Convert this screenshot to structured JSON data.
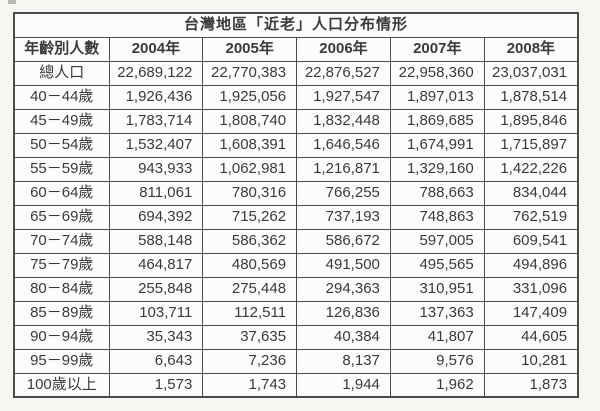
{
  "chart_data": {
    "type": "table",
    "title": "台灣地區「近老」人口分布情形",
    "columns": [
      "年齡別人數",
      "2004年",
      "2005年",
      "2006年",
      "2007年",
      "2008年"
    ],
    "rows": [
      {
        "label": "總人口",
        "values": [
          "22,689,122",
          "22,770,383",
          "22,876,527",
          "22,958,360",
          "23,037,031"
        ]
      },
      {
        "label": "40－44歲",
        "values": [
          "1,926,436",
          "1,925,056",
          "1,927,547",
          "1,897,013",
          "1,878,514"
        ]
      },
      {
        "label": "45－49歲",
        "values": [
          "1,783,714",
          "1,808,740",
          "1,832,448",
          "1,869,685",
          "1,895,846"
        ]
      },
      {
        "label": "50－54歲",
        "values": [
          "1,532,407",
          "1,608,391",
          "1,646,546",
          "1,674,991",
          "1,715,897"
        ]
      },
      {
        "label": "55－59歲",
        "values": [
          "943,933",
          "1,062,981",
          "1,216,871",
          "1,329,160",
          "1,422,226"
        ]
      },
      {
        "label": "60－64歲",
        "values": [
          "811,061",
          "780,316",
          "766,255",
          "788,663",
          "834,044"
        ]
      },
      {
        "label": "65－69歲",
        "values": [
          "694,392",
          "715,262",
          "737,193",
          "748,863",
          "762,519"
        ]
      },
      {
        "label": "70－74歲",
        "values": [
          "588,148",
          "586,362",
          "586,672",
          "597,005",
          "609,541"
        ]
      },
      {
        "label": "75－79歲",
        "values": [
          "464,817",
          "480,569",
          "491,500",
          "495,565",
          "494,896"
        ]
      },
      {
        "label": "80－84歲",
        "values": [
          "255,848",
          "275,448",
          "294,363",
          "310,951",
          "331,096"
        ]
      },
      {
        "label": "85－89歲",
        "values": [
          "103,711",
          "112,511",
          "126,836",
          "137,363",
          "147,409"
        ]
      },
      {
        "label": "90－94歲",
        "values": [
          "35,343",
          "37,635",
          "40,384",
          "41,807",
          "44,605"
        ]
      },
      {
        "label": "95－99歲",
        "values": [
          "6,643",
          "7,236",
          "8,137",
          "9,576",
          "10,281"
        ]
      },
      {
        "label": "100歲以上",
        "values": [
          "1,573",
          "1,743",
          "1,944",
          "1,962",
          "1,873"
        ]
      }
    ],
    "layout_hints": {
      "border_color": "#4a4a4a",
      "background": "#f6f6f3",
      "cell_background": "#fcfcfa",
      "number_alignment": "right",
      "label_alignment": "center"
    }
  }
}
